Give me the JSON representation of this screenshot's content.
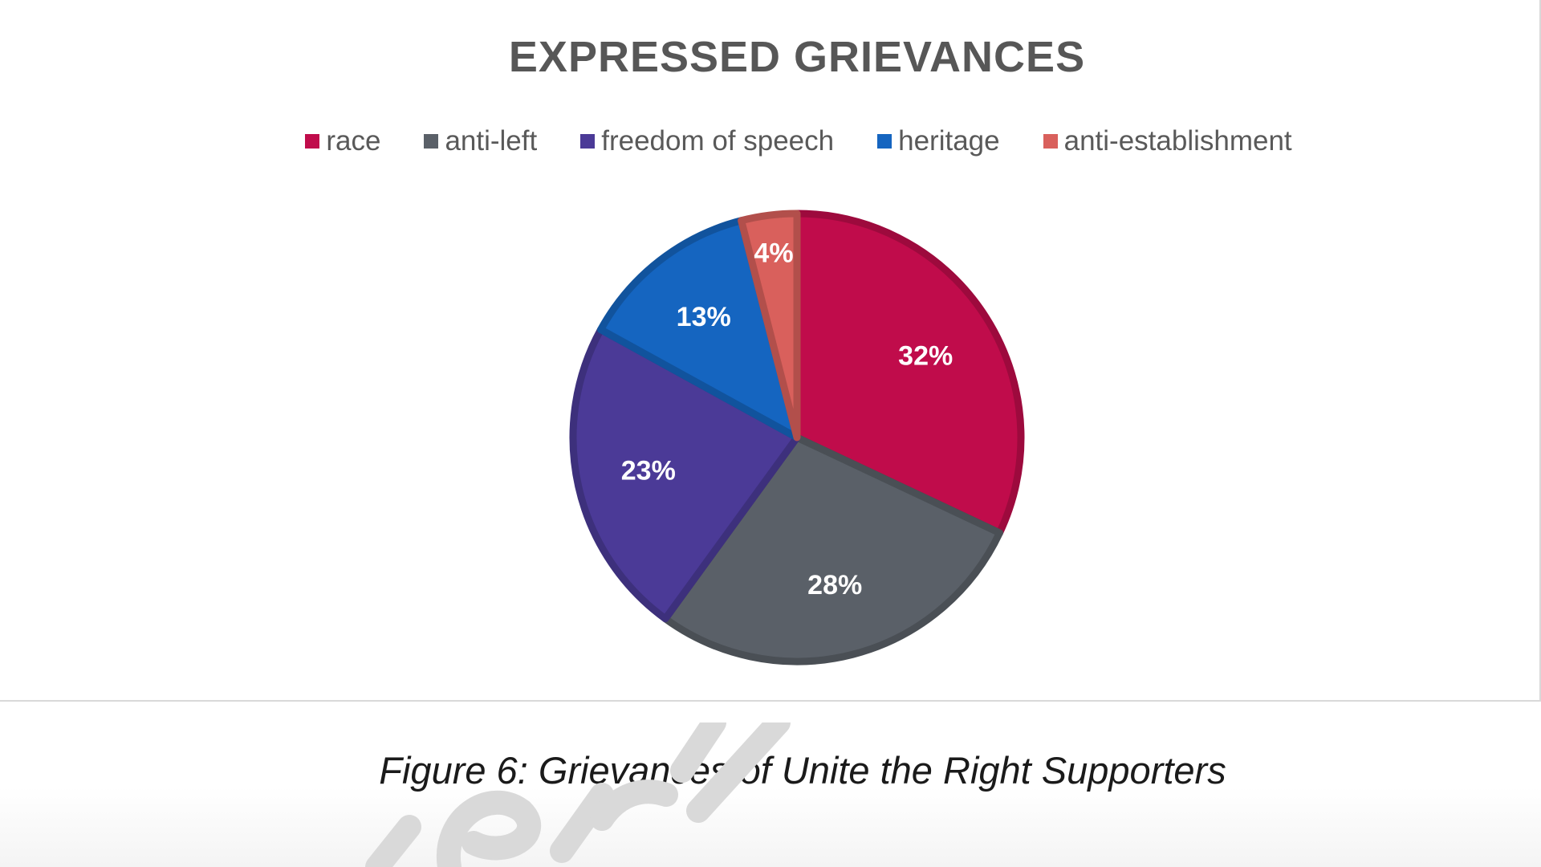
{
  "chart_data": {
    "type": "pie",
    "title": "EXPRESSED GRIEVANCES",
    "categories": [
      "race",
      "anti-left",
      "freedom of speech",
      "heritage",
      "anti-establishment"
    ],
    "values": [
      32,
      28,
      23,
      13,
      4
    ],
    "data_labels": [
      "32%",
      "28%",
      "23%",
      "13%",
      "4%"
    ],
    "colors": [
      "#c00c4b",
      "#5a6068",
      "#4b3a97",
      "#1565c0",
      "#d9605c"
    ],
    "legend_position": "top"
  },
  "caption": "Figure 6: Grievances of Unite the Right Supporters"
}
